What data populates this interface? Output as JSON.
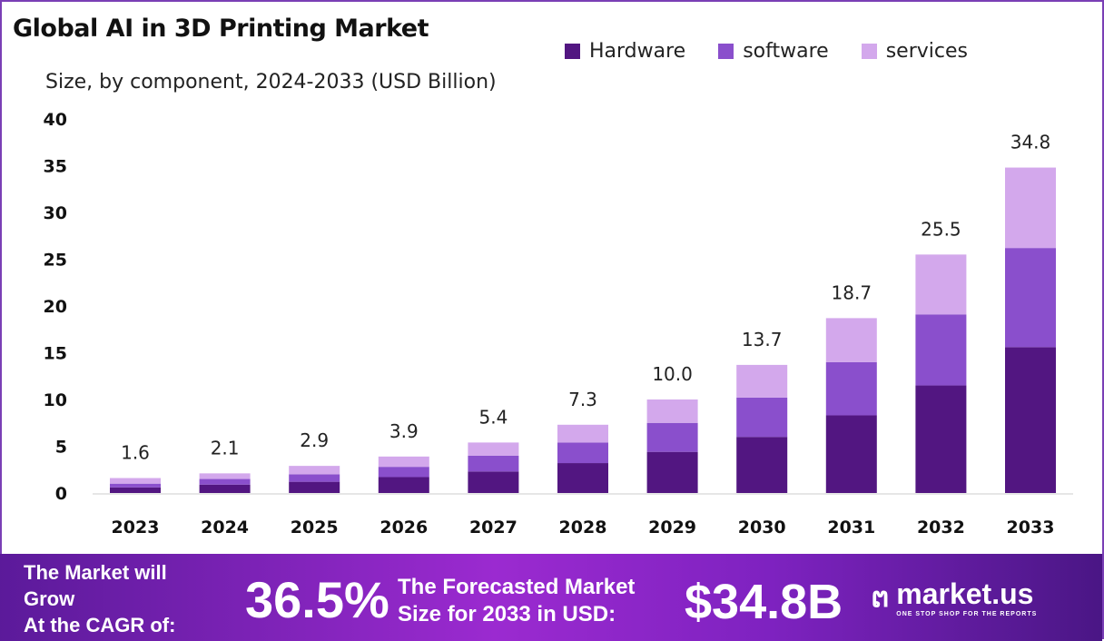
{
  "chart_data": {
    "type": "bar",
    "stacked": true,
    "title": "Global AI in 3D Printing Market",
    "subtitle": "Size, by component, 2024-2033 (USD Billion)",
    "categories": [
      "2023",
      "2024",
      "2025",
      "2026",
      "2027",
      "2028",
      "2029",
      "2030",
      "2031",
      "2032",
      "2033"
    ],
    "series": [
      {
        "name": "Hardware",
        "color": "#521681",
        "values": [
          0.6,
          0.9,
          1.2,
          1.7,
          2.3,
          3.2,
          4.4,
          6.0,
          8.3,
          11.5,
          15.6
        ]
      },
      {
        "name": "software",
        "color": "#8a4fcc",
        "values": [
          0.4,
          0.6,
          0.8,
          1.1,
          1.7,
          2.2,
          3.1,
          4.2,
          5.7,
          7.6,
          10.6
        ]
      },
      {
        "name": "services",
        "color": "#d3a8ec",
        "values": [
          0.6,
          0.6,
          0.9,
          1.1,
          1.4,
          1.9,
          2.5,
          3.5,
          4.7,
          6.4,
          8.6
        ]
      }
    ],
    "totals": [
      "1.6",
      "2.1",
      "2.9",
      "3.9",
      "5.4",
      "7.3",
      "10.0",
      "13.7",
      "18.7",
      "25.5",
      "34.8"
    ],
    "ylim": [
      0,
      40
    ],
    "yticks": [
      "0",
      "5",
      "10",
      "15",
      "20",
      "25",
      "30",
      "35",
      "40"
    ],
    "grid": false,
    "legend": "top-right"
  },
  "footer": {
    "line1": "The Market will",
    "line2": "Grow",
    "line3": "At the CAGR of:",
    "cagr": "36.5%",
    "forecast1": "The Forecasted Market",
    "forecast2": "Size for 2033 in USD:",
    "size": "$34.8B",
    "logo": "market.us",
    "tagline": "ONE STOP SHOP FOR THE REPORTS"
  }
}
